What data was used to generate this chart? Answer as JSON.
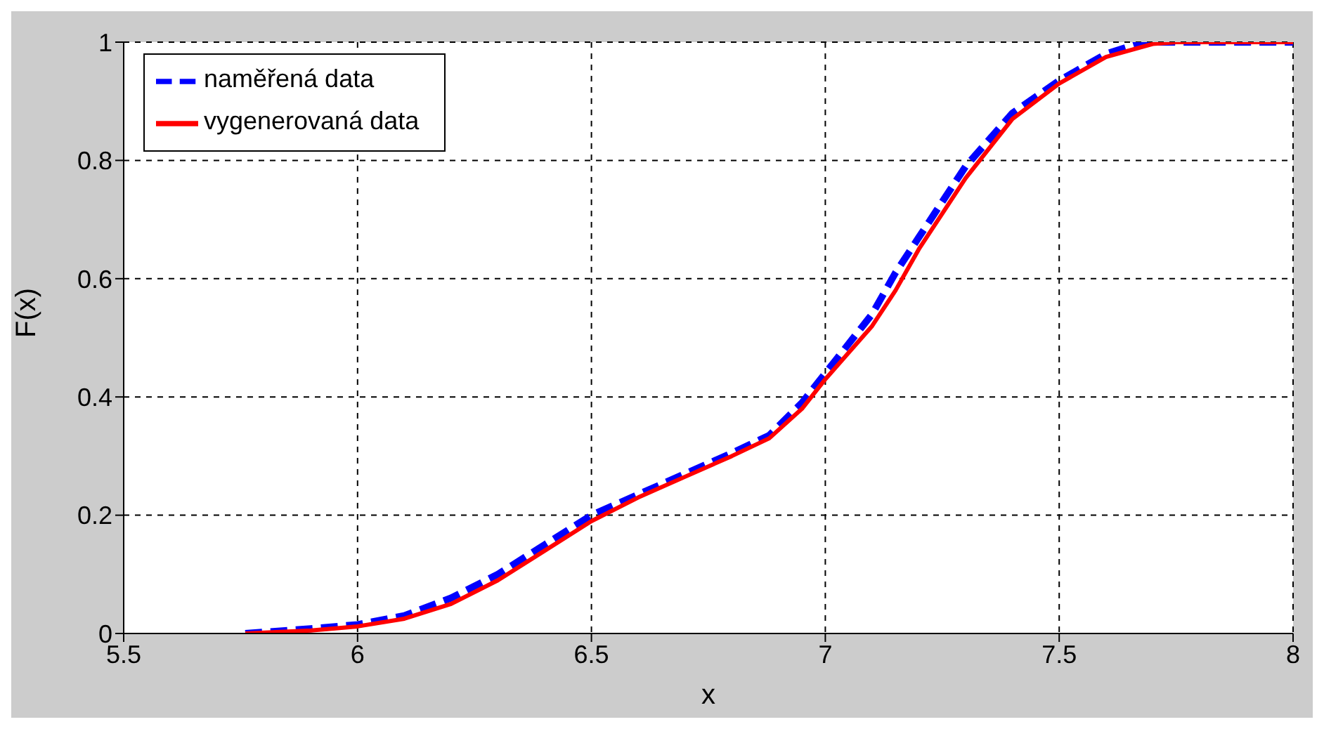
{
  "chart_data": {
    "type": "line",
    "xlabel": "x",
    "ylabel": "F(x)",
    "xlim": [
      5.5,
      8
    ],
    "xticks": [
      5.5,
      6,
      6.5,
      7,
      7.5,
      8
    ],
    "ylim": [
      0,
      1
    ],
    "yticks": [
      0,
      0.2,
      0.4,
      0.6,
      0.8,
      1
    ],
    "grid": true,
    "legend": "top left",
    "series": [
      {
        "name": "naměřená data",
        "color": "#0000ff",
        "line_style": "dashed",
        "x": [
          5.76,
          5.9,
          6.0,
          6.1,
          6.2,
          6.3,
          6.4,
          6.5,
          6.6,
          6.7,
          6.8,
          6.88,
          6.95,
          7.0,
          7.1,
          7.15,
          7.2,
          7.3,
          7.4,
          7.5,
          7.6,
          7.68,
          7.75,
          8.0
        ],
        "values": [
          0.0,
          0.008,
          0.015,
          0.03,
          0.06,
          0.1,
          0.15,
          0.2,
          0.235,
          0.27,
          0.305,
          0.335,
          0.39,
          0.44,
          0.54,
          0.61,
          0.67,
          0.79,
          0.88,
          0.935,
          0.98,
          1.0,
          1.0,
          1.0
        ]
      },
      {
        "name": "vygenerovaná data",
        "color": "#ff0000",
        "line_style": "solid",
        "x": [
          5.76,
          5.9,
          6.0,
          6.1,
          6.2,
          6.3,
          6.4,
          6.5,
          6.6,
          6.7,
          6.8,
          6.88,
          6.95,
          7.0,
          7.1,
          7.15,
          7.2,
          7.3,
          7.4,
          7.5,
          7.6,
          7.7,
          7.75,
          8.0
        ],
        "values": [
          0.0,
          0.005,
          0.012,
          0.025,
          0.05,
          0.09,
          0.14,
          0.19,
          0.23,
          0.265,
          0.3,
          0.33,
          0.38,
          0.43,
          0.52,
          0.58,
          0.65,
          0.77,
          0.87,
          0.93,
          0.975,
          0.997,
          1.0,
          1.0
        ]
      }
    ]
  }
}
